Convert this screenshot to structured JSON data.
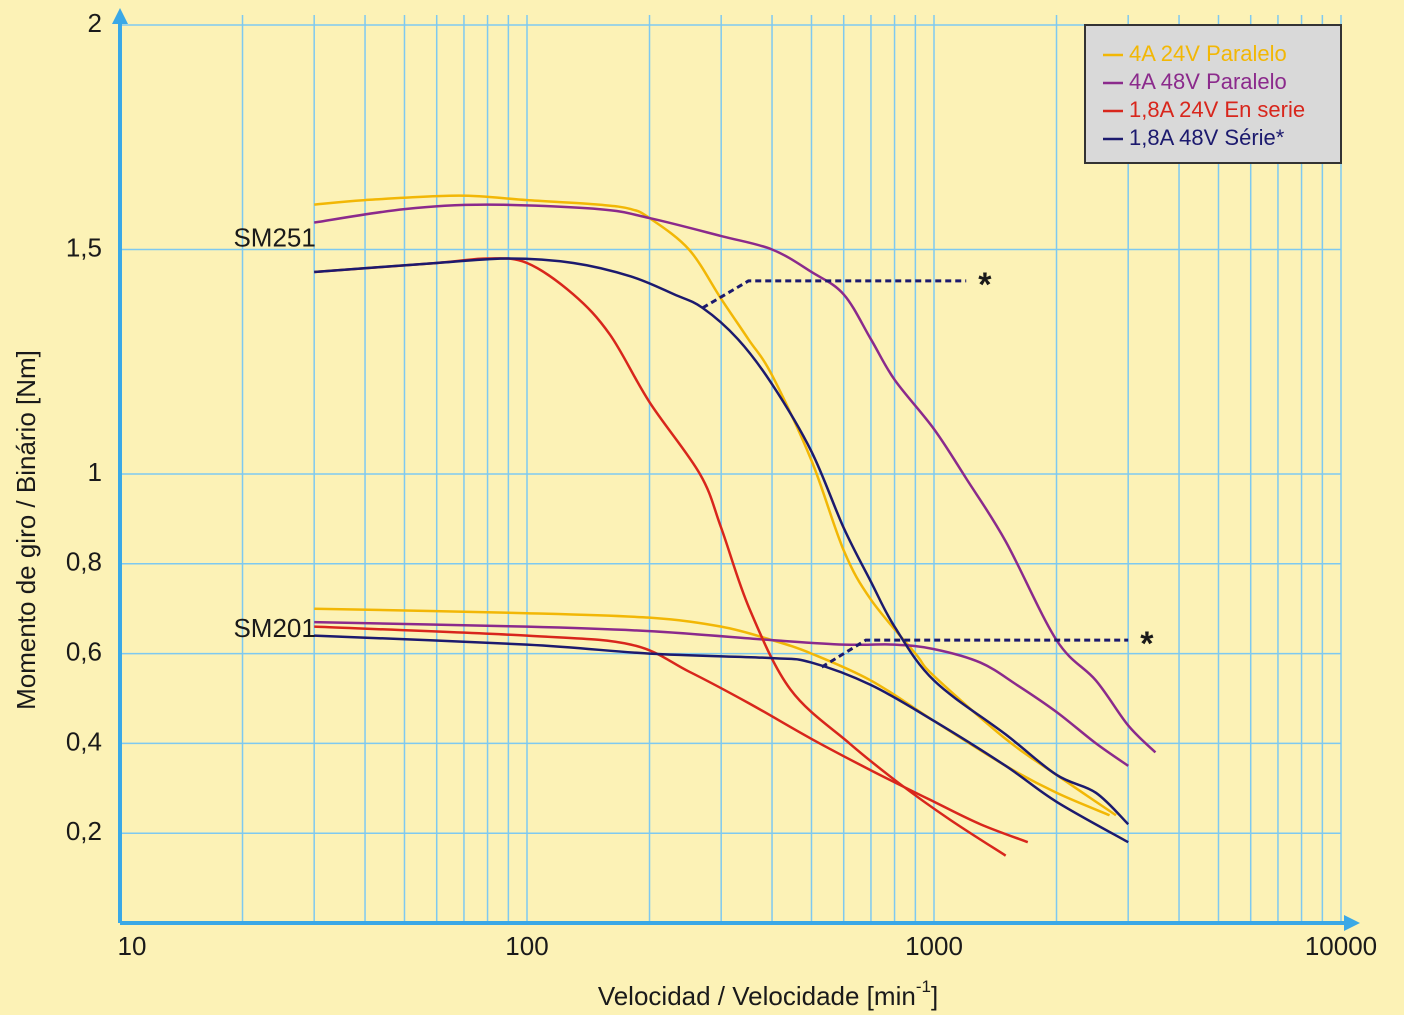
{
  "chart_data": {
    "type": "line",
    "x_label": [
      "Velocidad / Velocidade [min",
      "-1",
      "]"
    ],
    "y_label": "Momento de giro / Binário [Nm]",
    "xscale": "log",
    "xlim": [
      10,
      10000
    ],
    "xticks": [
      10,
      100,
      1000,
      10000
    ],
    "x_minor_ticks": [
      20,
      30,
      40,
      50,
      60,
      70,
      80,
      90,
      200,
      300,
      400,
      500,
      600,
      700,
      800,
      900,
      2000,
      3000,
      4000,
      5000,
      6000,
      7000,
      8000,
      9000
    ],
    "ylim": [
      0,
      2
    ],
    "yticks": [
      {
        "value": 0.2,
        "label": "0,2"
      },
      {
        "value": 0.4,
        "label": "0,4"
      },
      {
        "value": 0.6,
        "label": "0,6"
      },
      {
        "value": 0.8,
        "label": "0,8"
      },
      1,
      {
        "value": 1.5,
        "label": "1,5"
      },
      2
    ],
    "grid": true,
    "legend": "upper right",
    "curve_labels": [
      {
        "text": "SM251",
        "x": 19,
        "y": 1.5
      },
      {
        "text": "SM201",
        "x": 19,
        "y": 0.63
      }
    ],
    "series": [
      {
        "name": "4A 24V Paralelo",
        "color": "#f2b705",
        "curves": [
          {
            "x": [
              30,
              40,
              68,
              100,
              150,
              180,
              200,
              250,
              300,
              350,
              400,
              500,
              600,
              700,
              900,
              1000,
              1500,
              2000,
              2500,
              2800
            ],
            "values": [
              1.6,
              1.61,
              1.62,
              1.61,
              1.6,
              1.59,
              1.57,
              1.5,
              1.39,
              1.3,
              1.22,
              1.03,
              0.83,
              0.72,
              0.6,
              0.55,
              0.41,
              0.33,
              0.27,
              0.24
            ]
          },
          {
            "x": [
              30,
              100,
              200,
              300,
              400,
              500,
              700,
              1000,
              1500,
              2000,
              2700
            ],
            "values": [
              0.7,
              0.69,
              0.68,
              0.66,
              0.63,
              0.6,
              0.54,
              0.45,
              0.35,
              0.29,
              0.24
            ]
          }
        ]
      },
      {
        "name": "4A 48V Paralelo",
        "color": "#8b2a8c",
        "curves": [
          {
            "x": [
              30,
              50,
              80,
              150,
              200,
              300,
              400,
              500,
              600,
              700,
              800,
              1000,
              1200,
              1500,
              2000,
              2500,
              3000,
              3500
            ],
            "values": [
              1.56,
              1.59,
              1.6,
              1.59,
              1.57,
              1.53,
              1.5,
              1.45,
              1.4,
              1.3,
              1.21,
              1.1,
              0.99,
              0.85,
              0.63,
              0.54,
              0.44,
              0.38
            ]
          },
          {
            "x": [
              30,
              100,
              200,
              400,
              600,
              800,
              1000,
              1300,
              1600,
              2000,
              2500,
              3000
            ],
            "values": [
              0.67,
              0.66,
              0.65,
              0.63,
              0.62,
              0.62,
              0.61,
              0.58,
              0.53,
              0.47,
              0.4,
              0.35
            ]
          }
        ]
      },
      {
        "name": "1,8A 24V En serie",
        "color": "#d8261c",
        "curves": [
          {
            "x": [
              30,
              60,
              80,
              100,
              130,
              160,
              200,
              266,
              300,
              352,
              444,
              620,
              824,
              1095,
              1500
            ],
            "values": [
              1.45,
              1.47,
              1.48,
              1.47,
              1.4,
              1.31,
              1.16,
              1.0,
              0.88,
              0.7,
              0.52,
              0.4,
              0.31,
              0.23,
              0.15
            ]
          },
          {
            "x": [
              30,
              100,
              180,
              250,
              350,
              500,
              700,
              1000,
              1300,
              1700
            ],
            "values": [
              0.66,
              0.64,
              0.62,
              0.56,
              0.49,
              0.41,
              0.34,
              0.27,
              0.22,
              0.18
            ]
          }
        ]
      },
      {
        "name": "1,8A 48V Série*",
        "color": "#1c1a6e",
        "curves": [
          {
            "x": [
              30,
              60,
              90,
              130,
              180,
              230,
              270,
              330,
              400,
              500,
              600,
              700,
              800,
              1000,
              1500,
              2000,
              2500,
              3000
            ],
            "values": [
              1.45,
              1.47,
              1.48,
              1.47,
              1.44,
              1.4,
              1.37,
              1.3,
              1.2,
              1.05,
              0.88,
              0.76,
              0.66,
              0.54,
              0.42,
              0.33,
              0.29,
              0.22
            ]
          },
          {
            "x": [
              30,
              100,
              200,
              400,
              500,
              700,
              1000,
              1500,
              2000,
              3000
            ],
            "values": [
              0.64,
              0.62,
              0.6,
              0.59,
              0.58,
              0.53,
              0.45,
              0.35,
              0.27,
              0.18
            ]
          }
        ]
      }
    ],
    "annotations": [
      {
        "text": "*",
        "x": [
          270,
          350,
          1200
        ],
        "values": [
          1.37,
          1.43,
          1.43
        ]
      },
      {
        "text": "*",
        "x": [
          530,
          680,
          3000
        ],
        "values": [
          0.57,
          0.63,
          0.63
        ]
      }
    ]
  }
}
